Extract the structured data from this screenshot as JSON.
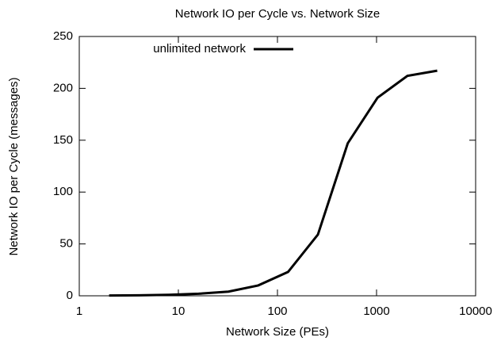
{
  "chart_data": {
    "type": "line",
    "title": "Network IO per Cycle vs. Network Size",
    "x_label": "Network Size (PEs)",
    "y_label": "Network IO per Cycle (messages)",
    "x": [
      2,
      4,
      8,
      16,
      32,
      64,
      128,
      256,
      512,
      1024,
      2048,
      4096
    ],
    "series": [
      {
        "name": "unlimited network",
        "color": "#000000",
        "values": [
          0.3,
          0.5,
          1,
          2,
          4,
          10,
          23,
          59,
          147,
          191,
          212,
          217
        ]
      }
    ],
    "xlim": [
      1,
      10000
    ],
    "xticks": [
      1,
      10,
      100,
      1000,
      10000
    ],
    "xlog": true,
    "ylim": [
      0,
      250
    ],
    "yticks": [
      0,
      50,
      100,
      150,
      200,
      250
    ],
    "legend": "top-left"
  }
}
